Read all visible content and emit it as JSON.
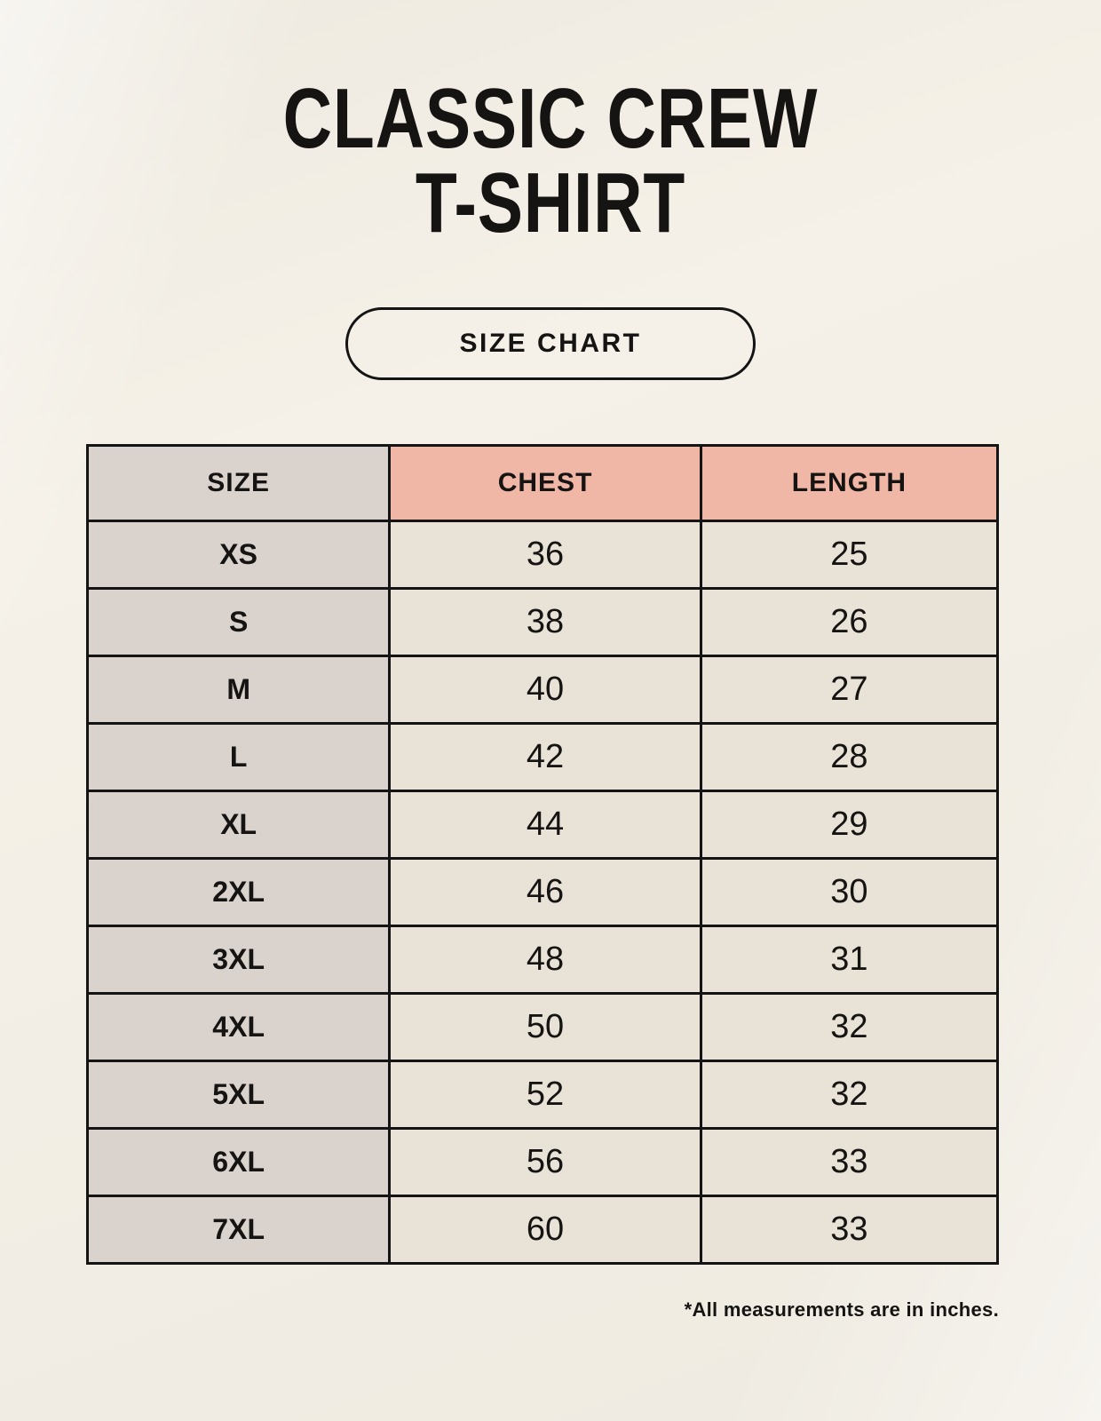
{
  "page": {
    "title_line1": "CLASSIC CREW",
    "title_line2": "T-SHIRT",
    "badge_label": "SIZE CHART",
    "footnote": "*All measurements are in inches."
  },
  "colors": {
    "background": "#f5f1e8",
    "header_accent": "#f0b7a6",
    "size_column": "#d9d2cd",
    "data_cell": "#e9e2d6",
    "border": "#141414",
    "text": "#161413"
  },
  "chart_data": {
    "type": "table",
    "title": "Classic Crew T-Shirt Size Chart",
    "columns": [
      "SIZE",
      "CHEST",
      "LENGTH"
    ],
    "rows": [
      [
        "XS",
        "36",
        "25"
      ],
      [
        "S",
        "38",
        "26"
      ],
      [
        "M",
        "40",
        "27"
      ],
      [
        "L",
        "42",
        "28"
      ],
      [
        "XL",
        "44",
        "29"
      ],
      [
        "2XL",
        "46",
        "30"
      ],
      [
        "3XL",
        "48",
        "31"
      ],
      [
        "4XL",
        "50",
        "32"
      ],
      [
        "5XL",
        "52",
        "32"
      ],
      [
        "6XL",
        "56",
        "33"
      ],
      [
        "7XL",
        "60",
        "33"
      ]
    ],
    "units": "inches"
  }
}
